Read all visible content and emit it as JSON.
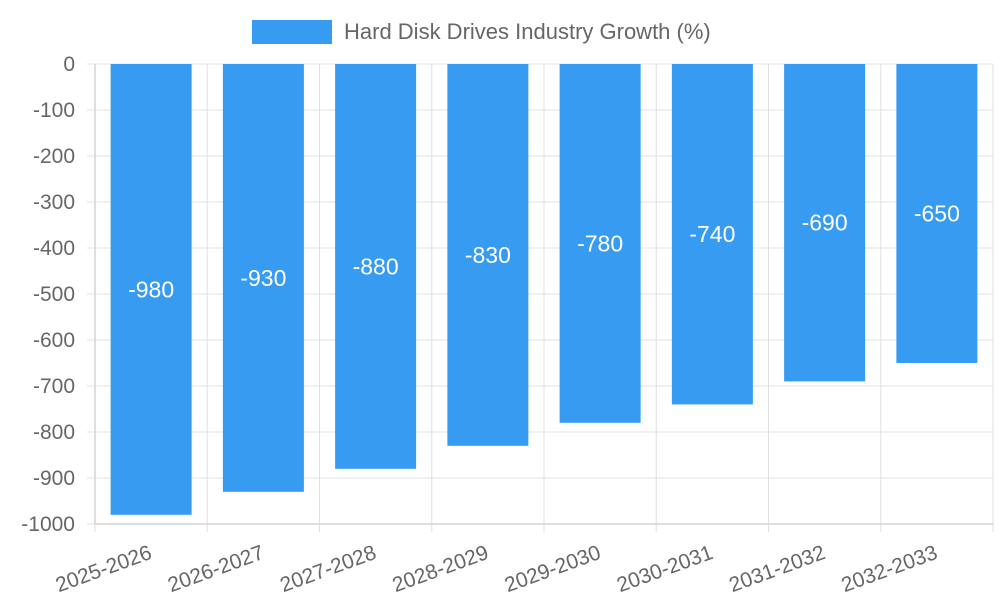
{
  "chart_data": {
    "type": "bar",
    "categories": [
      "2025-2026",
      "2026-2027",
      "2027-2028",
      "2028-2029",
      "2029-2030",
      "2030-2031",
      "2031-2032",
      "2032-2033"
    ],
    "series": [
      {
        "name": "Hard Disk Drives Industry Growth (%)",
        "values": [
          -980,
          -930,
          -880,
          -830,
          -780,
          -740,
          -690,
          -650
        ],
        "color": "#389BF2"
      }
    ],
    "ylim": [
      -1000,
      0
    ],
    "yticks": [
      0,
      -100,
      -200,
      -300,
      -400,
      -500,
      -600,
      -700,
      -800,
      -900,
      -1000
    ],
    "grid": true,
    "legend_position": "top-center",
    "data_labels": true
  }
}
